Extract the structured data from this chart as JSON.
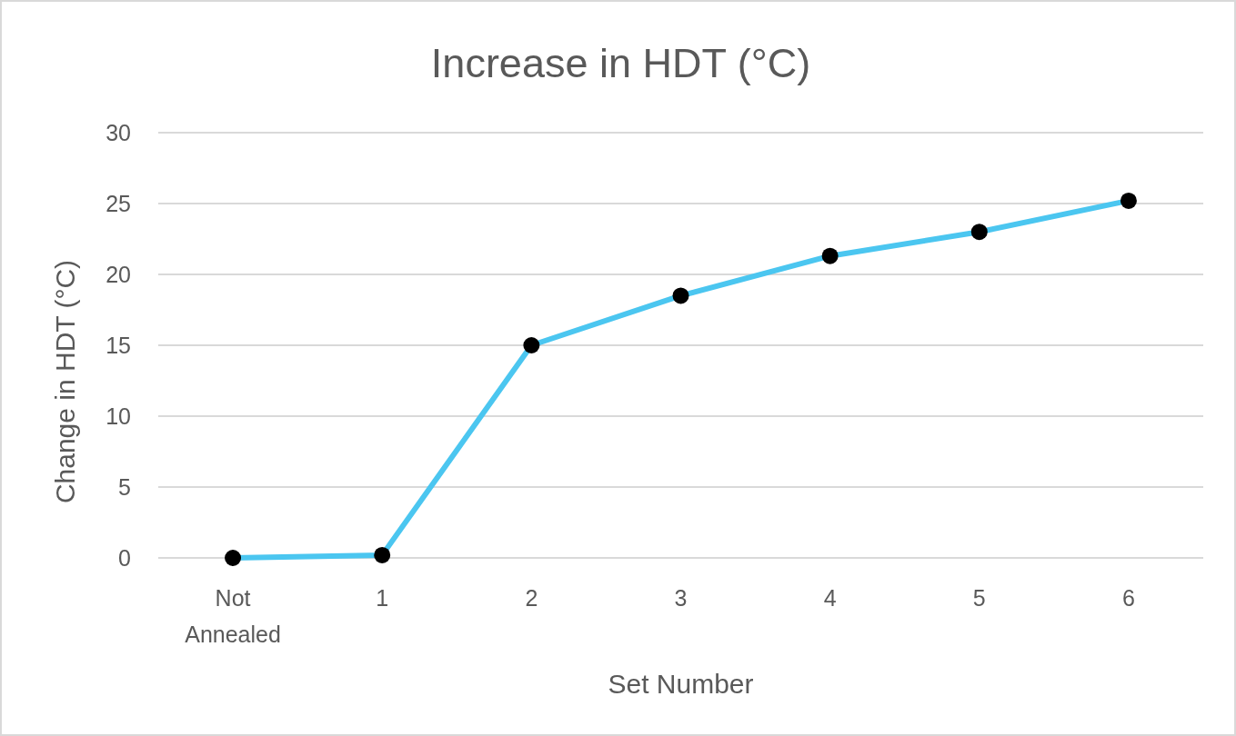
{
  "chart_data": {
    "type": "line",
    "title": "Increase in HDT (°C)",
    "xlabel": "Set Number",
    "ylabel": "Change in HDT (°C)",
    "categories": [
      "Not Annealed",
      "1",
      "2",
      "3",
      "4",
      "5",
      "6"
    ],
    "series": [
      {
        "color": "#4bc6f0",
        "values": [
          0,
          0.2,
          15,
          18.5,
          21.3,
          23,
          25.2
        ]
      }
    ],
    "ylim": [
      0,
      30
    ],
    "yticks": [
      0,
      5,
      10,
      15,
      20,
      25,
      30
    ],
    "grid": "y",
    "marker": "circle",
    "line_style": "solid"
  }
}
